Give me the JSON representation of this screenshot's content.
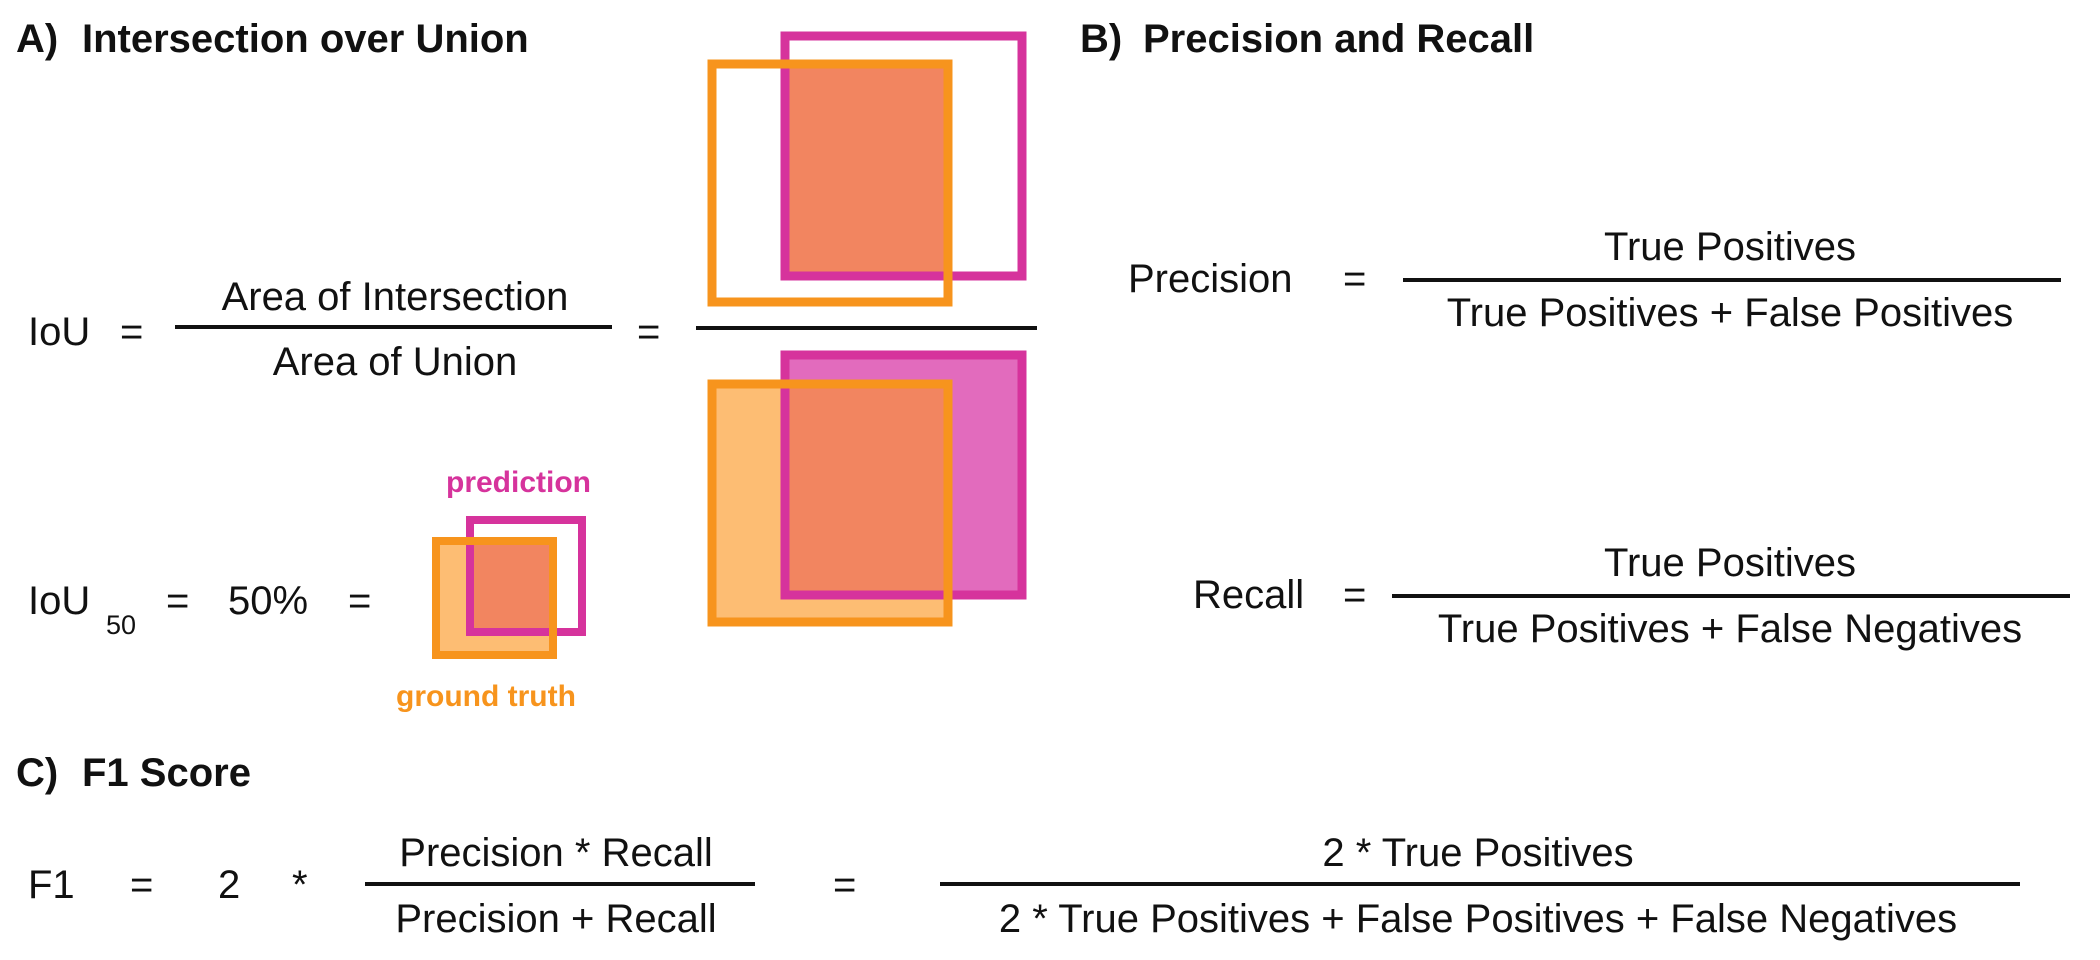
{
  "sections": {
    "a": {
      "letter": "A)",
      "title": "Intersection over Union",
      "iou_label": "IoU",
      "eq1": "=",
      "numerator": "Area of Intersection",
      "denominator": "Area of Union",
      "eq2": "=",
      "iou50_label": "IoU",
      "iou50_subscript": "50",
      "eq3": "=",
      "iou50_value": "50%",
      "eq4": "=",
      "prediction_label": "prediction",
      "ground_truth_label": "ground truth"
    },
    "b": {
      "letter": "B)",
      "title": "Precision and Recall",
      "precision_label": "Precision",
      "precision_eq": "=",
      "precision_numerator": "True Positives",
      "precision_denominator": "True Positives + False Positives",
      "recall_label": "Recall",
      "recall_eq": "=",
      "recall_numerator": "True Positives",
      "recall_denominator": "True Positives + False Negatives"
    },
    "c": {
      "letter": "C)",
      "title": "F1 Score",
      "f1_label": "F1",
      "eq1": "=",
      "two": "2",
      "times": "*",
      "numerator1": "Precision * Recall",
      "denominator1": "Precision + Recall",
      "eq2": "=",
      "numerator2": "2 * True Positives",
      "denominator2": "2 * True Positives + False Positives + False Negatives"
    }
  },
  "colors": {
    "prediction": "#d6339c",
    "ground_truth": "#f7941d",
    "intersection_fill": "#f28560",
    "prediction_fill": "#e26bbd",
    "ground_truth_fill": "#fdbd73",
    "text": "#111111"
  }
}
